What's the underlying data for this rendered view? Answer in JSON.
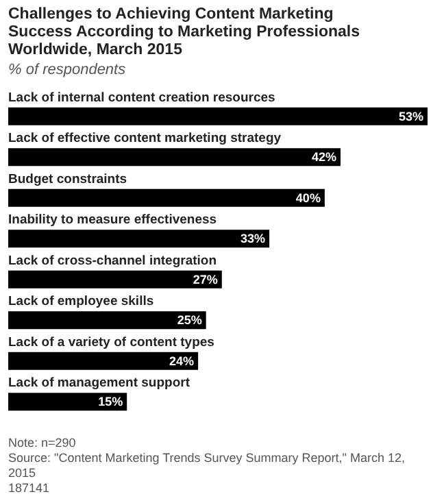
{
  "chart_data": {
    "type": "bar",
    "orientation": "horizontal",
    "title": "Challenges to Achieving Content Marketing Success According to Marketing Professionals Worldwide, March 2015",
    "subtitle": "% of respondents",
    "categories": [
      "Lack of internal content creation resources",
      "Lack of effective content marketing strategy",
      "Budget constraints",
      "Inability to measure effectiveness",
      "Lack of cross-channel integration",
      "Lack of employee skills",
      "Lack of a variety of content types",
      "Lack of management support"
    ],
    "values": [
      53,
      42,
      40,
      33,
      27,
      25,
      24,
      15
    ],
    "value_labels": [
      "53%",
      "42%",
      "40%",
      "33%",
      "27%",
      "25%",
      "24%",
      "15%"
    ],
    "color": "#000000",
    "annotations": [
      "Note: n=290",
      "Source: \"Content Marketing Trends Survey Summary Report,\" March 12, 2015",
      "187141"
    ]
  }
}
